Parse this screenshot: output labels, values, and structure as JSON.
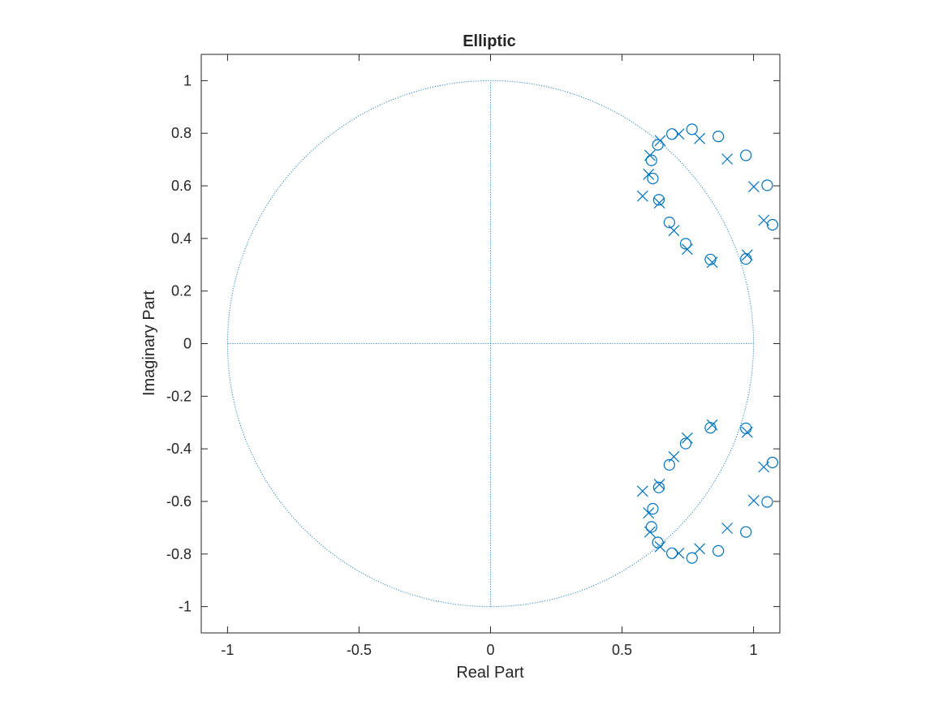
{
  "chart_data": {
    "type": "scatter",
    "title": "Elliptic",
    "xlabel": "Real Part",
    "ylabel": "Imaginary Part",
    "xlim": [
      -1.1,
      1.1
    ],
    "ylim": [
      -1.1,
      1.1
    ],
    "xticks": [
      -1,
      -0.5,
      0,
      0.5,
      1
    ],
    "xtick_labels": [
      "-1",
      "-0.5",
      "0",
      "0.5",
      "1"
    ],
    "yticks": [
      -1,
      -0.8,
      -0.6,
      -0.4,
      -0.2,
      0,
      0.2,
      0.4,
      0.6,
      0.8,
      1
    ],
    "ytick_labels": [
      "-1",
      "-0.8",
      "-0.6",
      "-0.4",
      "-0.2",
      "0",
      "0.2",
      "0.4",
      "0.6",
      "0.8",
      "1"
    ],
    "grid": false,
    "unit_circle": true,
    "marker_color": "#0072BD",
    "series": [
      {
        "marker": "circle",
        "points": [
          [
            0.971,
            0.322
          ],
          [
            1.072,
            0.452
          ],
          [
            1.052,
            0.602
          ],
          [
            0.971,
            0.716
          ],
          [
            0.866,
            0.788
          ],
          [
            0.766,
            0.815
          ],
          [
            0.69,
            0.797
          ],
          [
            0.636,
            0.756
          ],
          [
            0.612,
            0.697
          ],
          [
            0.617,
            0.628
          ],
          [
            0.64,
            0.547
          ],
          [
            0.68,
            0.461
          ],
          [
            0.742,
            0.38
          ],
          [
            0.836,
            0.32
          ],
          [
            0.971,
            -0.322
          ],
          [
            1.072,
            -0.452
          ],
          [
            1.052,
            -0.602
          ],
          [
            0.971,
            -0.716
          ],
          [
            0.866,
            -0.788
          ],
          [
            0.766,
            -0.815
          ],
          [
            0.69,
            -0.797
          ],
          [
            0.636,
            -0.756
          ],
          [
            0.612,
            -0.697
          ],
          [
            0.617,
            -0.628
          ],
          [
            0.64,
            -0.547
          ],
          [
            0.68,
            -0.461
          ],
          [
            0.742,
            -0.38
          ],
          [
            0.836,
            -0.32
          ]
        ]
      },
      {
        "marker": "x",
        "points": [
          [
            0.976,
            0.337
          ],
          [
            1.039,
            0.469
          ],
          [
            1.001,
            0.597
          ],
          [
            0.9,
            0.702
          ],
          [
            0.795,
            0.78
          ],
          [
            0.716,
            0.797
          ],
          [
            0.645,
            0.772
          ],
          [
            0.606,
            0.716
          ],
          [
            0.601,
            0.644
          ],
          [
            0.578,
            0.561
          ],
          [
            0.642,
            0.535
          ],
          [
            0.697,
            0.43
          ],
          [
            0.748,
            0.359
          ],
          [
            0.843,
            0.309
          ],
          [
            0.976,
            -0.337
          ],
          [
            1.039,
            -0.469
          ],
          [
            1.001,
            -0.597
          ],
          [
            0.9,
            -0.702
          ],
          [
            0.795,
            -0.78
          ],
          [
            0.716,
            -0.797
          ],
          [
            0.645,
            -0.772
          ],
          [
            0.606,
            -0.716
          ],
          [
            0.601,
            -0.644
          ],
          [
            0.578,
            -0.561
          ],
          [
            0.642,
            -0.535
          ],
          [
            0.697,
            -0.43
          ],
          [
            0.748,
            -0.359
          ],
          [
            0.843,
            -0.309
          ]
        ]
      }
    ]
  }
}
